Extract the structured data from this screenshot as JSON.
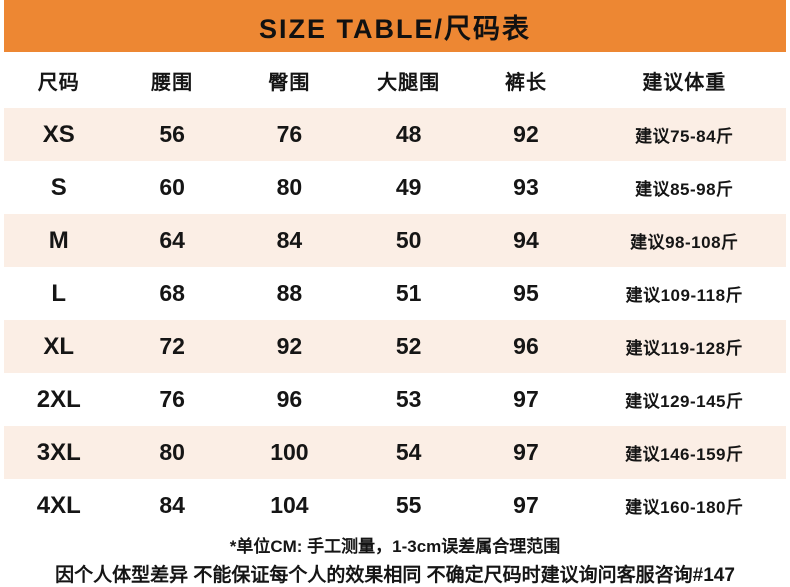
{
  "title": "SIZE TABLE/尺码表",
  "colors": {
    "accent_orange": "#ed8733",
    "row_cream": "#fbeee5",
    "text": "#151515"
  },
  "table": {
    "headers": [
      "尺码",
      "腰围",
      "臀围",
      "大腿围",
      "裤长",
      "建议体重"
    ],
    "rows": [
      {
        "size": "XS",
        "waist": "56",
        "hip": "76",
        "thigh": "48",
        "length": "92",
        "weight": "建议75-84斤"
      },
      {
        "size": "S",
        "waist": "60",
        "hip": "80",
        "thigh": "49",
        "length": "93",
        "weight": "建议85-98斤"
      },
      {
        "size": "M",
        "waist": "64",
        "hip": "84",
        "thigh": "50",
        "length": "94",
        "weight": "建议98-108斤"
      },
      {
        "size": "L",
        "waist": "68",
        "hip": "88",
        "thigh": "51",
        "length": "95",
        "weight": "建议109-118斤"
      },
      {
        "size": "XL",
        "waist": "72",
        "hip": "92",
        "thigh": "52",
        "length": "96",
        "weight": "建议119-128斤"
      },
      {
        "size": "2XL",
        "waist": "76",
        "hip": "96",
        "thigh": "53",
        "length": "97",
        "weight": "建议129-145斤"
      },
      {
        "size": "3XL",
        "waist": "80",
        "hip": "100",
        "thigh": "54",
        "length": "97",
        "weight": "建议146-159斤"
      },
      {
        "size": "4XL",
        "waist": "84",
        "hip": "104",
        "thigh": "55",
        "length": "97",
        "weight": "建议160-180斤"
      }
    ]
  },
  "footer": {
    "line1": "*单位CM: 手工测量，1-3cm误差属合理范围",
    "line2": "因个人体型差异 不能保证每个人的效果相同 不确定尺码时建议询问客服咨询#147"
  },
  "chart_data": {
    "type": "table",
    "title": "SIZE TABLE/尺码表",
    "columns": [
      "尺码",
      "腰围",
      "臀围",
      "大腿围",
      "裤长",
      "建议体重"
    ],
    "rows": [
      [
        "XS",
        56,
        76,
        48,
        92,
        "建议75-84斤"
      ],
      [
        "S",
        60,
        80,
        49,
        93,
        "建议85-98斤"
      ],
      [
        "M",
        64,
        84,
        50,
        94,
        "建议98-108斤"
      ],
      [
        "L",
        68,
        88,
        51,
        95,
        "建议109-118斤"
      ],
      [
        "XL",
        72,
        92,
        52,
        96,
        "建议119-128斤"
      ],
      [
        "2XL",
        76,
        96,
        53,
        97,
        "建议129-145斤"
      ],
      [
        "3XL",
        80,
        100,
        54,
        97,
        "建议146-159斤"
      ],
      [
        "4XL",
        84,
        104,
        55,
        97,
        "建议160-180斤"
      ]
    ]
  }
}
